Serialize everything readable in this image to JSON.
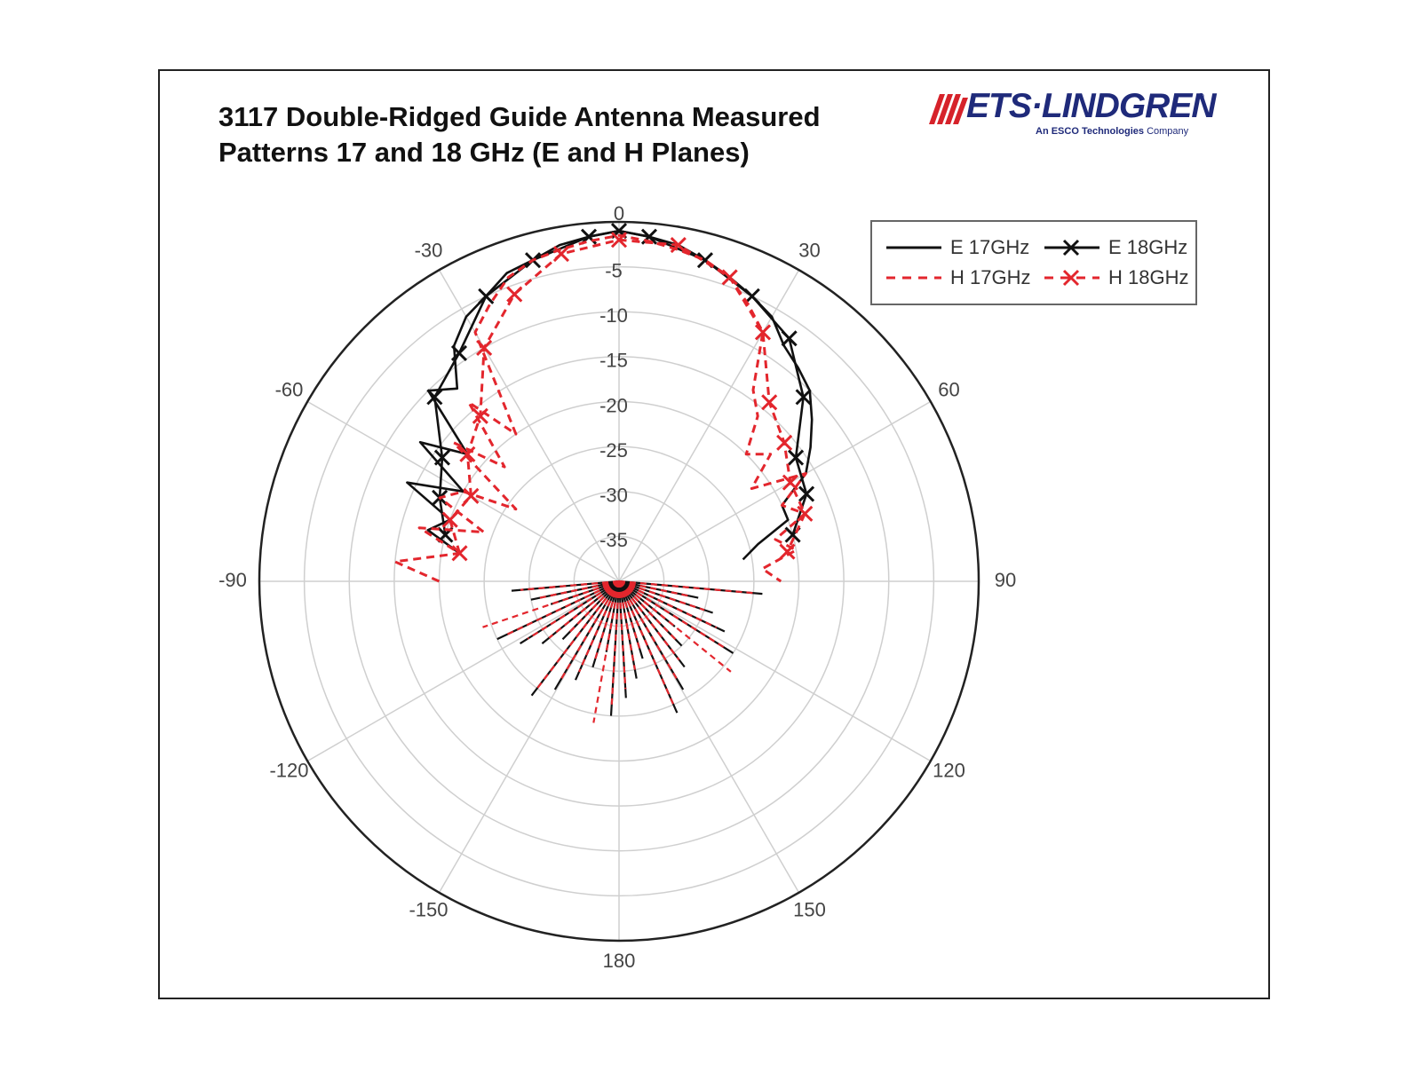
{
  "title_lines": [
    "3117 Double-Ridged Guide Antenna Measured",
    "Patterns 17 and 18 GHz (E and H Planes)"
  ],
  "logo": {
    "name": "ETS·LINDGREN",
    "registered": "®",
    "tagline_bold": "An ESCO Technologies",
    "tagline_rest": " Company"
  },
  "colors": {
    "e_series": "#111111",
    "h_series": "#e3262d",
    "grid": "#cfcfcf",
    "logo": "#1f2a7a",
    "logo_stripes": "#d6222a"
  },
  "chart_data": {
    "type": "polar",
    "title": "3117 Double-Ridged Guide Antenna Measured Patterns 17 and 18 GHz (E and H Planes)",
    "angle_ticks": [
      0,
      30,
      60,
      90,
      120,
      150,
      180,
      -150,
      -120,
      -90,
      -60,
      -30
    ],
    "angle_tick_labels": [
      "0",
      "30",
      "60",
      "90",
      "120",
      "150",
      "180",
      "-150",
      "-120",
      "-90",
      "-60",
      "-30"
    ],
    "radial_ticks": [
      -5,
      -10,
      -15,
      -20,
      -25,
      -30,
      -35
    ],
    "radial_tick_labels": [
      "-5",
      "-10",
      "-15",
      "-20",
      "-25",
      "-30",
      "-35"
    ],
    "rlim": [
      -40,
      0
    ],
    "legend_position": "top-right",
    "series": [
      {
        "name": "E 17GHz",
        "style": "solid",
        "marker": "none",
        "theta": [
          -80,
          -75,
          -70,
          -65,
          -60,
          -55,
          -50,
          -45,
          -40,
          -35,
          -30,
          -25,
          -20,
          -15,
          -10,
          -5,
          0,
          5,
          10,
          15,
          20,
          25,
          30,
          35,
          40,
          45,
          50,
          55,
          60,
          65,
          70,
          75,
          80
        ],
        "r": [
          -22,
          -18,
          -20,
          -14,
          -20,
          -13,
          -18,
          -10,
          -12,
          -8,
          -6,
          -5,
          -3.5,
          -3,
          -2,
          -1.5,
          -1,
          -1.5,
          -2,
          -3,
          -4,
          -5,
          -6,
          -8,
          -9,
          -10,
          -12,
          -14,
          -16,
          -20,
          -20,
          -24,
          -26
        ]
      },
      {
        "name": "E 18GHz",
        "style": "solid",
        "marker": "x",
        "theta": [
          -75,
          -65,
          -55,
          -45,
          -35,
          -25,
          -15,
          -5,
          0,
          5,
          15,
          25,
          35,
          45,
          55,
          65,
          75
        ],
        "r": [
          -20,
          -18,
          -16,
          -11,
          -9,
          -5,
          -3,
          -1.5,
          -1,
          -1.5,
          -3,
          -5,
          -7,
          -11,
          -16,
          -17,
          -20
        ]
      },
      {
        "name": "H 17GHz",
        "style": "dashed",
        "marker": "none",
        "theta": [
          -90,
          -85,
          -80,
          -75,
          -70,
          -65,
          -60,
          -55,
          -50,
          -45,
          -40,
          -35,
          -30,
          -25,
          -20,
          -15,
          -10,
          -5,
          0,
          5,
          10,
          15,
          20,
          25,
          30,
          35,
          40,
          45,
          50,
          55,
          60,
          65,
          70,
          75,
          80,
          85,
          90
        ],
        "r": [
          -20,
          -15,
          -22,
          -17,
          -24,
          -18,
          -20,
          -26,
          -16,
          -22,
          -14,
          -20,
          -8,
          -6,
          -4,
          -3,
          -2.5,
          -2,
          -1.5,
          -2,
          -2.5,
          -3,
          -4,
          -6,
          -8,
          -14,
          -16,
          -20,
          -18,
          -22,
          -16,
          -20,
          -18,
          -22,
          -20,
          -24,
          -22
        ]
      },
      {
        "name": "H 18GHz",
        "style": "dashed",
        "marker": "x",
        "theta": [
          -80,
          -70,
          -60,
          -50,
          -40,
          -30,
          -20,
          -10,
          0,
          10,
          20,
          30,
          40,
          50,
          60,
          70,
          80
        ],
        "r": [
          -22,
          -20,
          -21,
          -18,
          -16,
          -10,
          -6,
          -3,
          -2,
          -2,
          -4,
          -8,
          -14,
          -16,
          -18,
          -18,
          -21
        ]
      }
    ]
  }
}
